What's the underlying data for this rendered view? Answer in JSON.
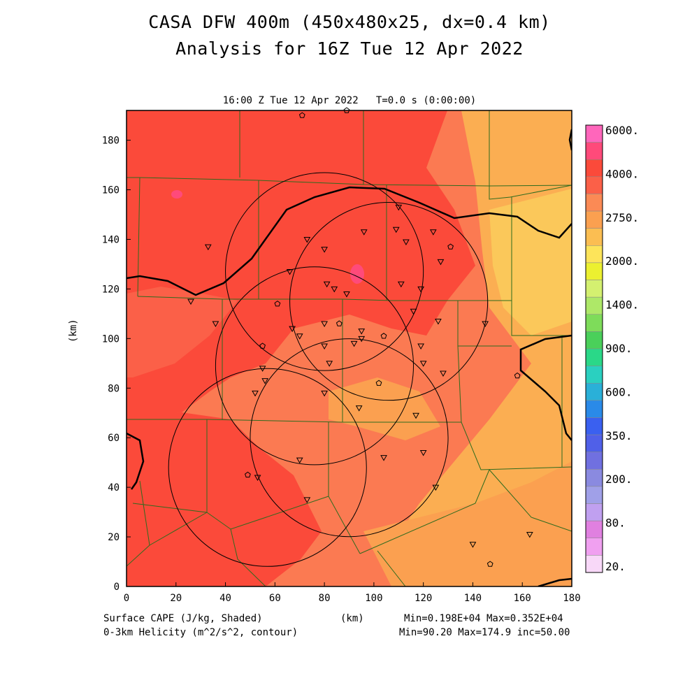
{
  "title_line1": "CASA DFW 400m (450x480x25, dx=0.4 km)",
  "title_line2": "Analysis for 16Z Tue 12 Apr 2022",
  "plot_header": "16:00 Z Tue 12 Apr 2022   T=0.0 s (0:00:00)",
  "axes": {
    "ylabel": "(km)",
    "xlabel": "(km)",
    "xticks": [
      0,
      20,
      40,
      60,
      80,
      100,
      120,
      140,
      160,
      180
    ],
    "yticks": [
      0,
      20,
      40,
      60,
      80,
      100,
      120,
      140,
      160,
      180
    ],
    "xlim": [
      0,
      180
    ],
    "ylim": [
      0,
      192
    ]
  },
  "colorbar": {
    "labels": [
      "6000.",
      "4000.",
      "2750.",
      "2000.",
      "1400.",
      "900.",
      "600.",
      "350.",
      "200.",
      "80.",
      "20."
    ],
    "colors": [
      "#ff66bb",
      "#ff4a7a",
      "#fb4a3a",
      "#fb6048",
      "#fb8a55",
      "#fba050",
      "#fbbe52",
      "#fde45a",
      "#ecf030",
      "#d4f070",
      "#aee868",
      "#7edc5a",
      "#4ad05a",
      "#2ad888",
      "#2ad0c0",
      "#2ab0d8",
      "#2a8ae8",
      "#3a60f0",
      "#5060e8",
      "#7070e0",
      "#8a8ae0",
      "#a0a0e8",
      "#c0a0f0",
      "#e080e0",
      "#f0a0f0",
      "#f8d8f8"
    ]
  },
  "footer": {
    "left1": "Surface CAPE (J/kg, Shaded)",
    "center": "(km)",
    "right1": "Min=0.198E+04 Max=0.352E+04",
    "left2": "0-3km Helicity (m^2/s^2, contour)",
    "right2": "Min=90.20 Max=174.9 inc=50.00"
  },
  "map": {
    "radars_km": [
      {
        "x": 80,
        "y": 127,
        "r": 40
      },
      {
        "x": 106,
        "y": 115,
        "r": 40
      },
      {
        "x": 76,
        "y": 89,
        "r": 40
      },
      {
        "x": 57,
        "y": 48,
        "r": 40
      },
      {
        "x": 90,
        "y": 60,
        "r": 40
      }
    ],
    "triangles_km": [
      [
        33,
        137
      ],
      [
        26,
        115
      ],
      [
        36,
        106
      ],
      [
        66,
        127
      ],
      [
        73,
        140
      ],
      [
        80,
        136
      ],
      [
        81,
        122
      ],
      [
        84,
        120
      ],
      [
        89,
        118
      ],
      [
        96,
        143
      ],
      [
        110,
        153
      ],
      [
        109,
        144
      ],
      [
        113,
        139
      ],
      [
        111,
        122
      ],
      [
        116,
        111
      ],
      [
        119,
        120
      ],
      [
        124,
        143
      ],
      [
        127,
        131
      ],
      [
        126,
        107
      ],
      [
        67,
        104
      ],
      [
        70,
        101
      ],
      [
        80,
        106
      ],
      [
        80,
        97
      ],
      [
        82,
        90
      ],
      [
        92,
        98
      ],
      [
        95,
        103
      ],
      [
        95,
        100
      ],
      [
        55,
        88
      ],
      [
        56,
        83
      ],
      [
        52,
        78
      ],
      [
        119,
        97
      ],
      [
        120,
        90
      ],
      [
        128,
        86
      ],
      [
        145,
        106
      ],
      [
        80,
        78
      ],
      [
        94,
        72
      ],
      [
        117,
        69
      ],
      [
        70,
        51
      ],
      [
        104,
        52
      ],
      [
        120,
        54
      ],
      [
        125,
        40
      ],
      [
        53,
        44
      ],
      [
        73,
        35
      ],
      [
        140,
        17
      ],
      [
        163,
        21
      ]
    ],
    "pentagons_km": [
      [
        71,
        190
      ],
      [
        89,
        192
      ],
      [
        61,
        114
      ],
      [
        55,
        97
      ],
      [
        86,
        106
      ],
      [
        104,
        101
      ],
      [
        102,
        82
      ],
      [
        49,
        45
      ],
      [
        147,
        9
      ],
      [
        158,
        85
      ],
      [
        131,
        137
      ]
    ]
  }
}
